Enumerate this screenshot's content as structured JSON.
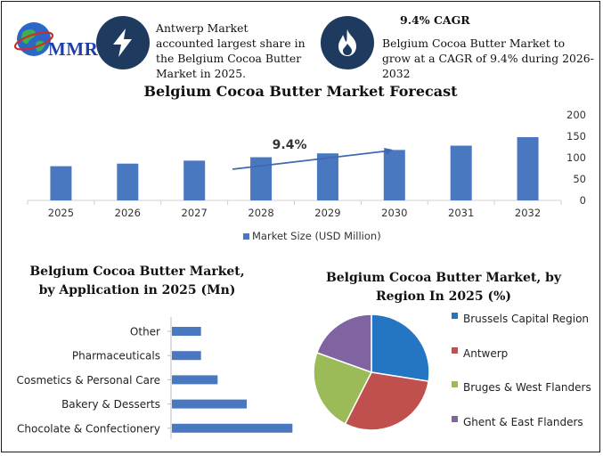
{
  "header": {
    "logo_text": "MMR",
    "highlight_1": "Antwerp Market accounted largest share in the Belgium Cocoa Butter Market in 2025.",
    "cagr_title": "9.4% CAGR",
    "highlight_2": "Belgium Cocoa Butter Market to grow at a CAGR of 9.4% during 2026-2032",
    "icon_1": "lightning-icon",
    "icon_2": "flame-icon",
    "icon_logo": "globe-icon",
    "icon_color": "#1e3a5f"
  },
  "chart_data": [
    {
      "type": "bar",
      "title": "Belgium Cocoa Butter Market Forecast",
      "categories": [
        "2025",
        "2026",
        "2027",
        "2028",
        "2029",
        "2030",
        "2031",
        "2032"
      ],
      "series": [
        {
          "name": "Market Size (USD Million)",
          "values": [
            80,
            86,
            93,
            101,
            110,
            118,
            128,
            148
          ],
          "color": "#4a78c0"
        }
      ],
      "ylim": [
        0,
        200
      ],
      "yticks": [
        "0",
        "50",
        "100",
        "150",
        "200"
      ],
      "axis_side": "right",
      "grid": false,
      "legend_position": "bottom",
      "annotation": {
        "text": "9.4%",
        "type": "arrow",
        "from_category": "2028",
        "to_category": "2030"
      }
    },
    {
      "type": "bar",
      "orientation": "horizontal",
      "title": "Belgium Cocoa Butter Market, by Application in 2025 (Mn)",
      "categories": [
        "Other",
        "Pharmaceuticals",
        "Cosmetics & Personal Care",
        "Bakery & Desserts",
        "Chocolate & Confectionery"
      ],
      "values": [
        7,
        7,
        11,
        18,
        29
      ],
      "color": "#4a78c0",
      "xlim": [
        0,
        30
      ]
    },
    {
      "type": "pie",
      "title": "Belgium Cocoa Butter Market, by Region In 2025 (%)",
      "labels": [
        "Brussels Capital Region",
        "Antwerp",
        "Bruges & West Flanders",
        "Ghent & East Flanders"
      ],
      "values": [
        27.5,
        30,
        23,
        19.5
      ],
      "colors": [
        "#2476c3",
        "#c0504d",
        "#9bbb59",
        "#8064a2"
      ],
      "legend_position": "right"
    }
  ]
}
